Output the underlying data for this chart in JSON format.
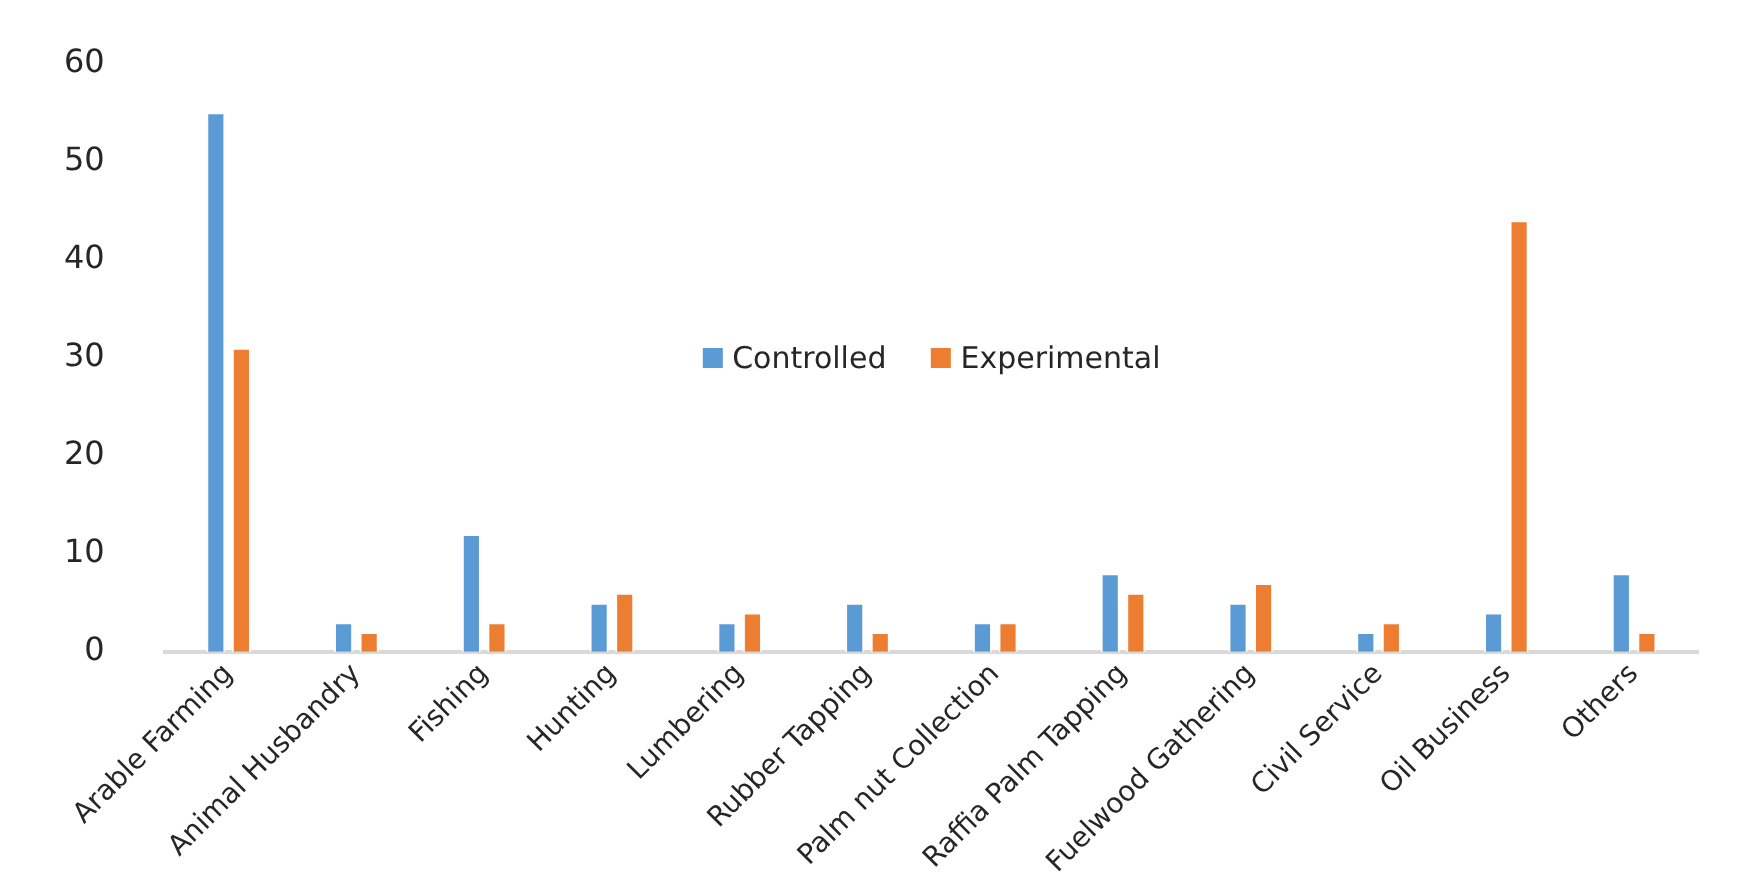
{
  "chart_data": {
    "type": "bar",
    "categories": [
      "Arable Farming",
      "Animal Husbandry",
      "Fishing",
      "Hunting",
      "Lumbering",
      "Rubber Tapping",
      "Palm nut Collection",
      "Raffia Palm Tapping",
      "Fuelwood Gathering",
      "Civil Service",
      "Oil Business",
      "Others"
    ],
    "series": [
      {
        "name": "Controlled",
        "color": "#5b9bd5",
        "values": [
          55,
          3,
          12,
          5,
          3,
          5,
          3,
          8,
          5,
          2,
          4,
          8
        ]
      },
      {
        "name": "Experimental",
        "color": "#ed7d31",
        "values": [
          31,
          2,
          3,
          6,
          4,
          2,
          3,
          6,
          7,
          3,
          44,
          2
        ]
      }
    ],
    "ylim": [
      0,
      60
    ],
    "yticks": [
      0,
      10,
      20,
      30,
      40,
      50,
      60
    ],
    "grid": false,
    "legend": "center"
  }
}
